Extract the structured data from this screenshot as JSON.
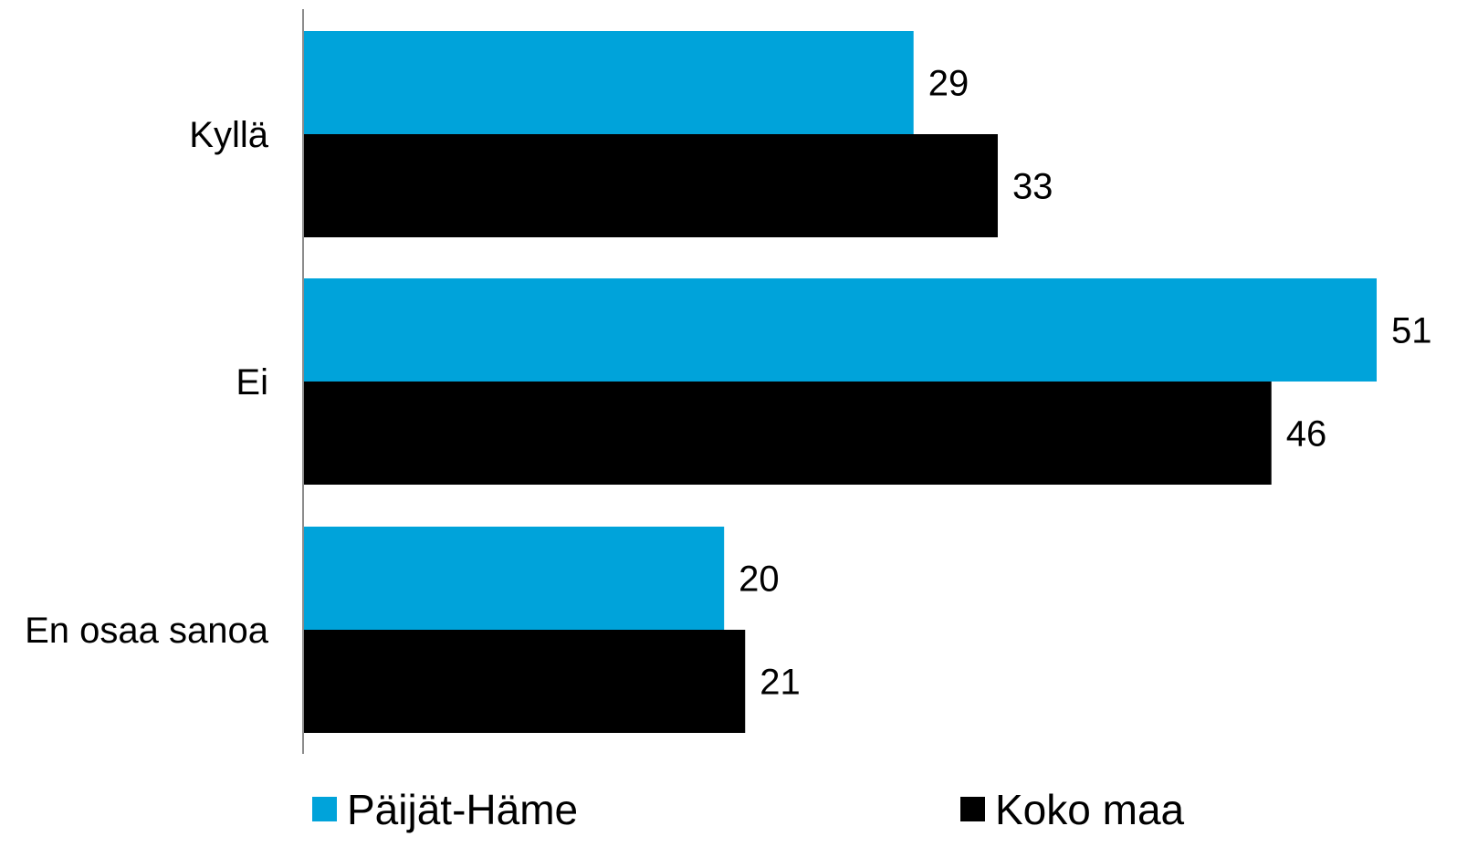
{
  "chart_data": {
    "type": "bar",
    "orientation": "horizontal",
    "categories": [
      "Kyllä",
      "Ei",
      "En osaa sanoa"
    ],
    "series": [
      {
        "name": "Päijät-Häme",
        "values": [
          29,
          51,
          20
        ],
        "color": "#00a3da"
      },
      {
        "name": "Koko maa",
        "values": [
          33,
          46,
          21
        ],
        "color": "#000000"
      }
    ],
    "xlim": [
      0,
      51
    ],
    "grid": false,
    "legend": "bottom",
    "data_labels": true
  }
}
